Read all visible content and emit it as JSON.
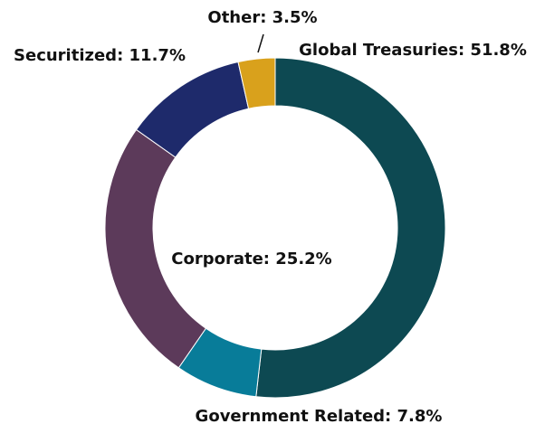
{
  "chart_data": {
    "type": "donut",
    "labels": [
      "Global Treasuries: 51.8%",
      "Government Related: 7.8%",
      "Corporate: 25.2%",
      "Securitized: 11.7%",
      "Other: 3.5%"
    ],
    "values": [
      51.8,
      7.8,
      25.2,
      11.7,
      3.5
    ],
    "colors": [
      "#0d4952",
      "#087c99",
      "#5c3a5a",
      "#1e2a6b",
      "#d9a11c"
    ]
  }
}
